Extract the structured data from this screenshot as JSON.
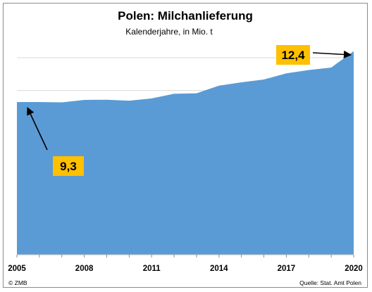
{
  "chart_data": {
    "type": "area",
    "title": "Polen: Milchanlieferung",
    "subtitle": "Kalenderjahre, in Mio. t",
    "x": [
      2005,
      2006,
      2007,
      2008,
      2009,
      2010,
      2011,
      2012,
      2013,
      2014,
      2015,
      2016,
      2017,
      2018,
      2019,
      2020
    ],
    "values": [
      9.3,
      9.3,
      9.28,
      9.43,
      9.44,
      9.38,
      9.52,
      9.8,
      9.83,
      10.3,
      10.5,
      10.67,
      11.05,
      11.25,
      11.4,
      12.4
    ],
    "xticks": [
      "2005",
      "2008",
      "2011",
      "2014",
      "2017",
      "2020"
    ],
    "ylim": [
      0,
      13.5
    ],
    "grid": true,
    "color": "#5b9bd5",
    "annotations": [
      {
        "label": "9,3",
        "x": 2005,
        "y": 9.3,
        "color": "#ffc000"
      },
      {
        "label": "12,4",
        "x": 2020,
        "y": 12.4,
        "color": "#ffc000"
      }
    ],
    "source": "Quelle: Stat. Amt Polen",
    "credit": "© ZMB"
  }
}
